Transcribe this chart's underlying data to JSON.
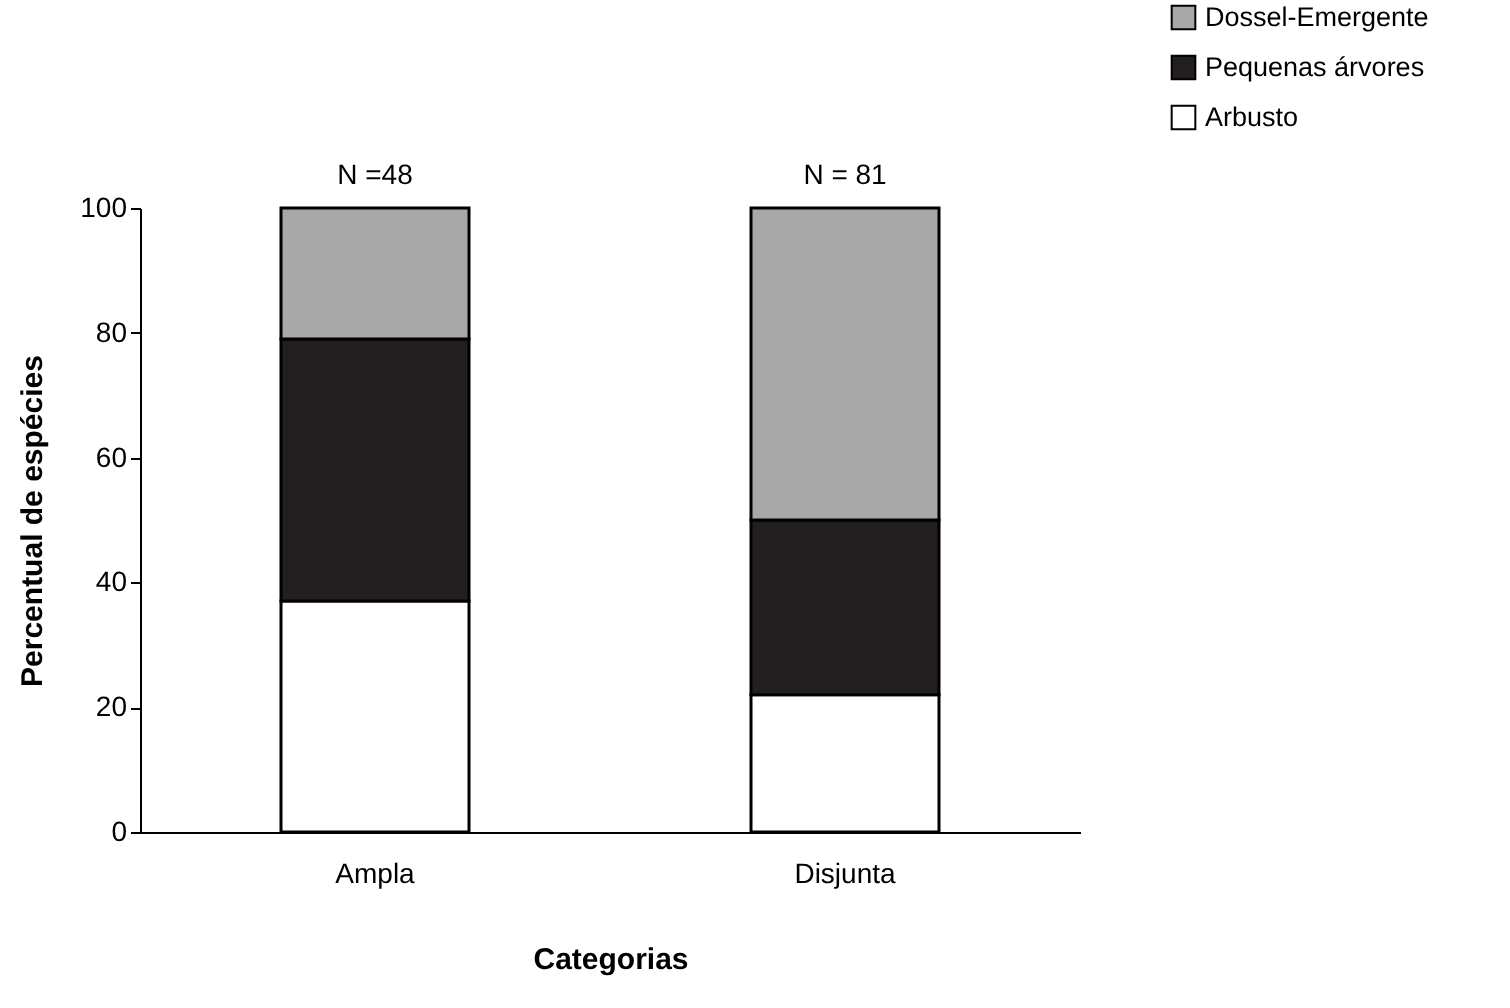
{
  "chart_data": {
    "type": "bar",
    "stacked": true,
    "xlabel": "Categorias",
    "ylabel": "Percentual de espécies",
    "categories": [
      "Ampla",
      "Disjunta"
    ],
    "series": [
      {
        "name": "Arbusto",
        "color": "#ffffff",
        "values": [
          37,
          22
        ]
      },
      {
        "name": "Pequenas árvores",
        "color": "#231f20",
        "values": [
          42,
          28
        ]
      },
      {
        "name": "Dossel-Emergente",
        "color": "#a8a8a8",
        "values": [
          21,
          50
        ]
      }
    ],
    "ylim": [
      0,
      100
    ],
    "yticks": [
      0,
      20,
      40,
      60,
      80,
      100
    ],
    "legend": "top right",
    "annotations": [
      {
        "text": "N =48",
        "x": "Ampla",
        "y": 100
      },
      {
        "text": "N = 81",
        "x": "Disjunta",
        "y": 100
      }
    ]
  }
}
